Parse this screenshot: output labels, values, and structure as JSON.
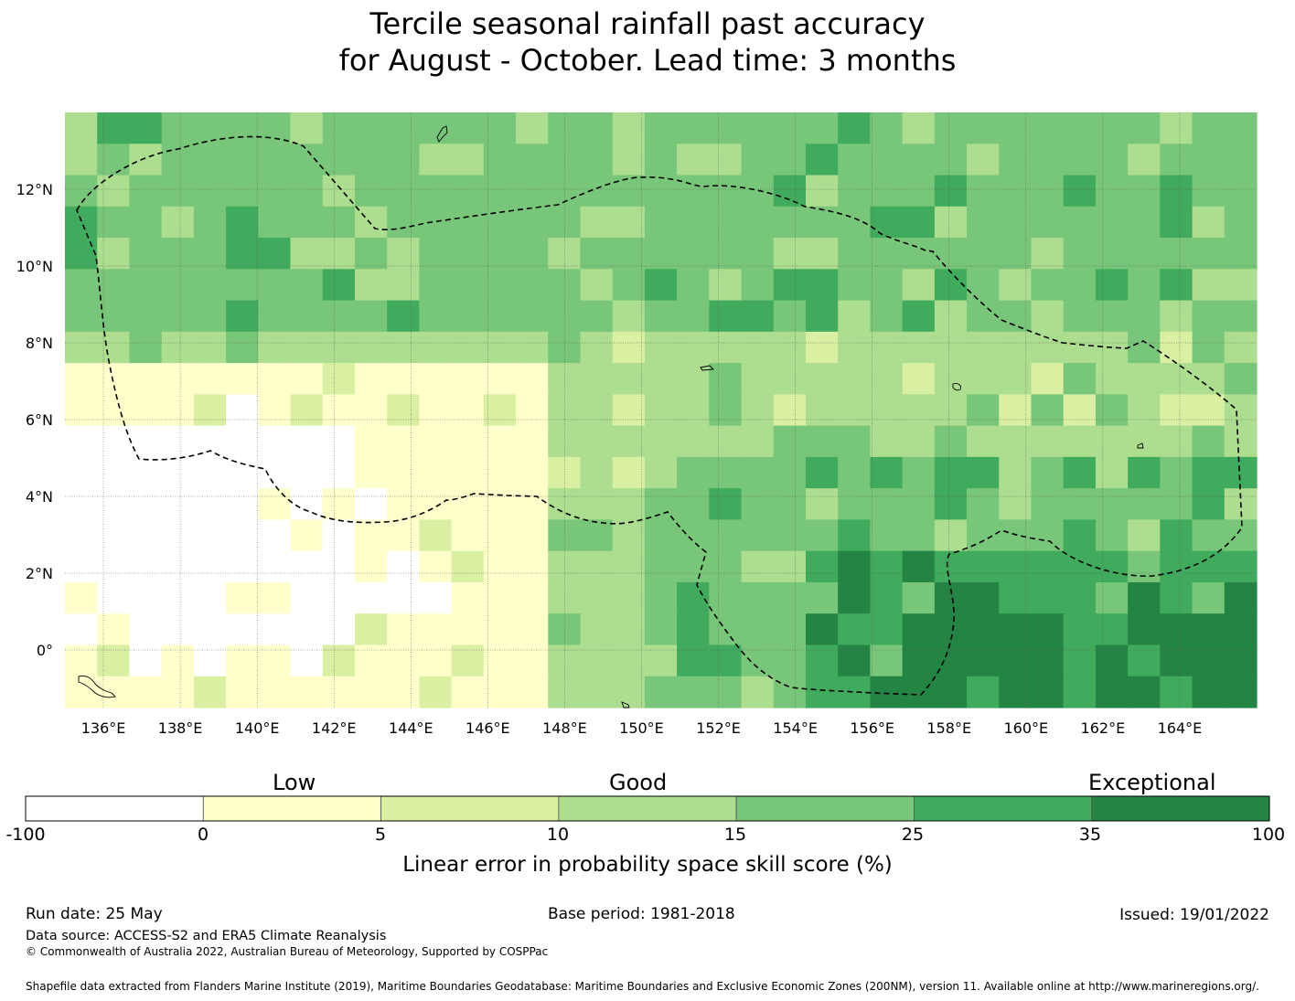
{
  "title_line1": "Tercile seasonal rainfall past accuracy",
  "title_line2": "for August - October. Lead time: 3 months",
  "map": {
    "lon_range": [
      135,
      166
    ],
    "lat_range": [
      -1.5,
      14
    ],
    "lon_ticks": [
      "136°E",
      "138°E",
      "140°E",
      "142°E",
      "144°E",
      "146°E",
      "148°E",
      "150°E",
      "152°E",
      "154°E",
      "156°E",
      "158°E",
      "160°E",
      "162°E",
      "164°E"
    ],
    "lat_ticks": [
      "12°N",
      "10°N",
      "8°N",
      "6°N",
      "4°N",
      "2°N",
      "0°"
    ],
    "gridlines": true,
    "boundary": "dashed"
  },
  "legend": {
    "categories": [
      "Low",
      "Good",
      "Exceptional"
    ],
    "ticks": [
      "-100",
      "0",
      "5",
      "10",
      "15",
      "25",
      "35",
      "100"
    ],
    "colors": [
      "#ffffff",
      "#ffffcc",
      "#d9f0a3",
      "#addd8e",
      "#78c679",
      "#41ab5d",
      "#238443"
    ],
    "label": "Linear error in probability space skill score (%)"
  },
  "footer": {
    "run_date": "Run date: 25 May",
    "base_period": "Base period: 1981-2018",
    "issued": "Issued: 19/01/2022",
    "data_source": "Data source: ACCESS-S2 and ERA5 Climate Reanalysis",
    "copyright": "© Commonwealth of Australia 2022, Australian Bureau of Meteorology, Supported by COSPPac",
    "shapefile": "Shapefile data extracted from Flanders Marine Institute (2019), Maritime Boundaries Geodatabase: Maritime Boundaries and Exclusive Economic Zones (200NM), version 11. Available online at http://www.marineregions.org/."
  }
}
